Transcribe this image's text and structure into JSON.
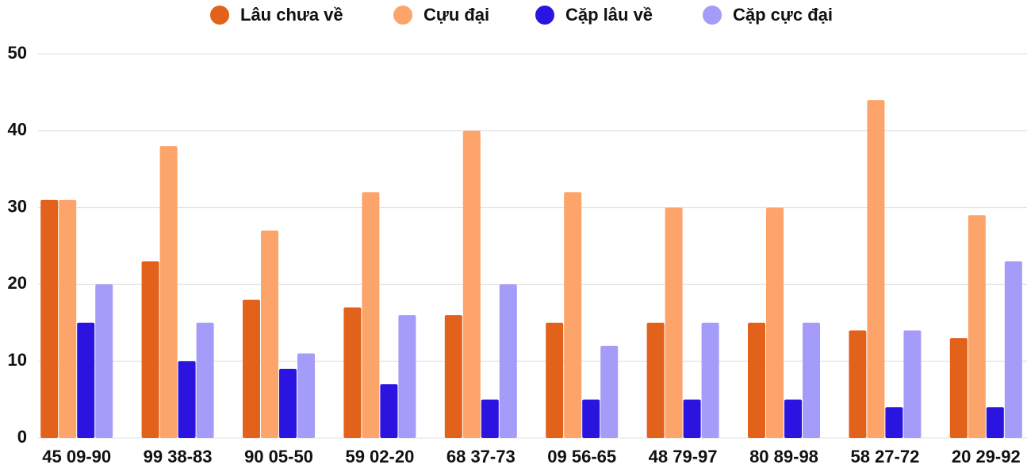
{
  "chart_data": {
    "type": "bar",
    "categories": [
      "45 09-90",
      "99 38-83",
      "90 05-50",
      "59 02-20",
      "68 37-73",
      "09 56-65",
      "48 79-97",
      "80 89-98",
      "58 27-72",
      "20 29-92"
    ],
    "series": [
      {
        "name": "Lâu chưa về",
        "color": "#e2621b",
        "values": [
          31,
          23,
          18,
          17,
          16,
          15,
          15,
          15,
          14,
          13
        ]
      },
      {
        "name": "Cựu đại",
        "color": "#fda46a",
        "values": [
          31,
          38,
          27,
          32,
          40,
          32,
          30,
          30,
          44,
          29
        ]
      },
      {
        "name": "Cặp lâu về",
        "color": "#2b14e0",
        "values": [
          15,
          10,
          9,
          7,
          5,
          5,
          5,
          5,
          4,
          4
        ]
      },
      {
        "name": "Cặp cực đại",
        "color": "#a49cf8",
        "values": [
          20,
          15,
          11,
          16,
          20,
          12,
          15,
          15,
          14,
          23
        ]
      }
    ],
    "ylim": [
      0,
      50
    ],
    "yticks": [
      0,
      10,
      20,
      30,
      40,
      50
    ],
    "grid": true,
    "legend": "top"
  }
}
